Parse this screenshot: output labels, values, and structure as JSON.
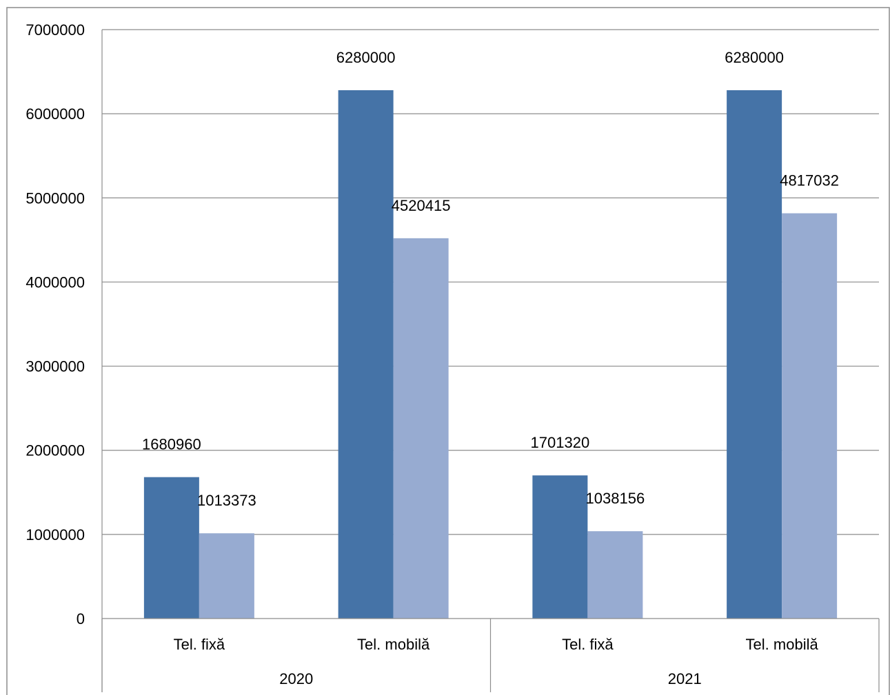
{
  "chart_data": {
    "type": "bar",
    "title": "",
    "xlabel": "",
    "ylabel": "",
    "ylim": [
      0,
      7000000
    ],
    "yticks": [
      0,
      1000000,
      2000000,
      3000000,
      4000000,
      5000000,
      6000000,
      7000000
    ],
    "ytick_labels": [
      "0",
      "1000000",
      "2000000",
      "3000000",
      "4000000",
      "5000000",
      "6000000",
      "7000000"
    ],
    "grid": true,
    "legend": "none",
    "groups": [
      {
        "label": "2020",
        "categories": [
          "Tel. fixă",
          "Tel. mobilă"
        ]
      },
      {
        "label": "2021",
        "categories": [
          "Tel. fixă",
          "Tel. mobilă"
        ]
      }
    ],
    "series": [
      {
        "color": "#4573A7",
        "values": [
          1680960,
          6280000,
          1701320,
          6280000
        ],
        "labels": [
          "1680960",
          "6280000",
          "1701320",
          "6280000"
        ]
      },
      {
        "color": "#97ABD1",
        "values": [
          1013373,
          4520415,
          1038156,
          4817032
        ],
        "labels": [
          "1013373",
          "4520415",
          "1038156",
          "4817032"
        ]
      }
    ]
  }
}
